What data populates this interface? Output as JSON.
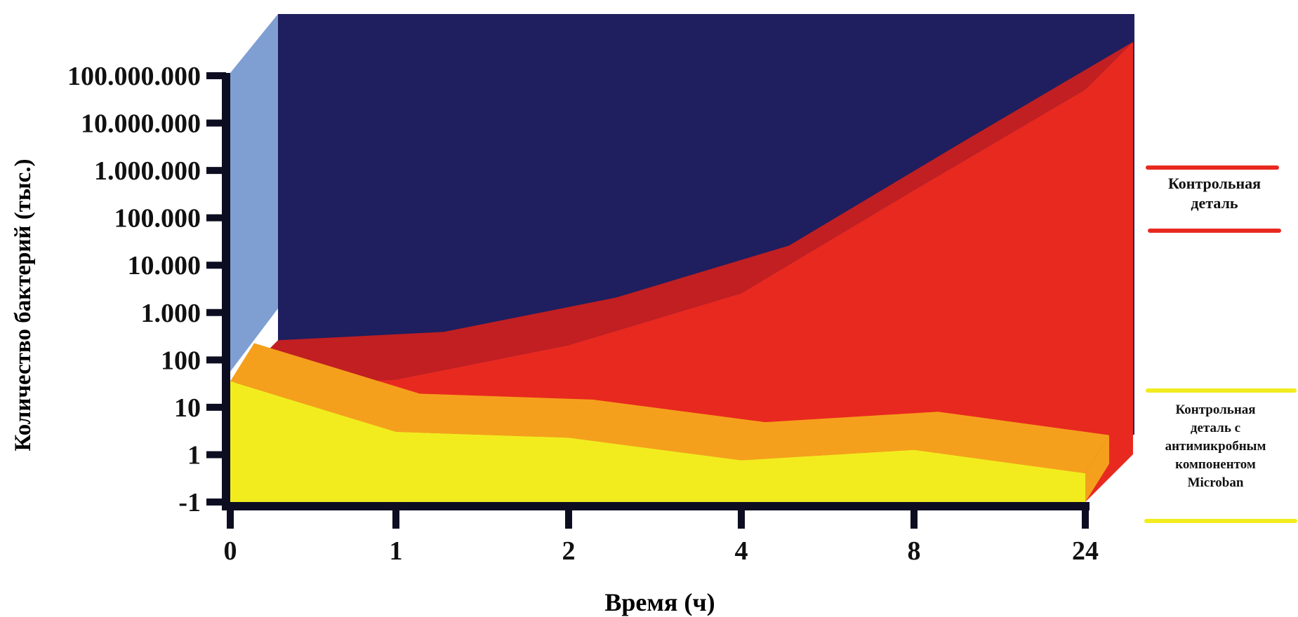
{
  "chart_data": {
    "type": "area",
    "xlabel": "Время (ч)",
    "ylabel": "Количество бактерий (тыс.)",
    "categories": [
      "0",
      "1",
      "2",
      "4",
      "8",
      "24"
    ],
    "y_scale": "log",
    "y_ticks": [
      "100.000.000",
      "10.000.000",
      "1.000.000",
      "100.000",
      "10.000",
      "1.000",
      "100",
      "10",
      "1",
      "-1"
    ],
    "ylim": [
      0.1,
      100000000
    ],
    "series": [
      {
        "name": "Контрольная деталь",
        "values": [
          100,
          150,
          800,
          10000,
          1500000,
          200000000
        ]
      },
      {
        "name": "Контрольная деталь с антимикробным компонентом Microban",
        "values": [
          70,
          6,
          4.5,
          1.5,
          2.5,
          0.8
        ]
      }
    ],
    "legend": {
      "control": [
        "Контрольная",
        "деталь"
      ],
      "microban": [
        "Контрольная",
        "деталь с",
        "антимикробным",
        "компонентом",
        "Microban"
      ]
    },
    "colors": {
      "background_wall": "#1f1e5e",
      "left_wall": "#7f9fd3",
      "control": "#e8291f",
      "control_top": "#c11f22",
      "microban": "#f2ec1f",
      "microban_top": "#f5a01c",
      "axis": "#0d0d22"
    },
    "grid": false,
    "legend_position": "right"
  }
}
